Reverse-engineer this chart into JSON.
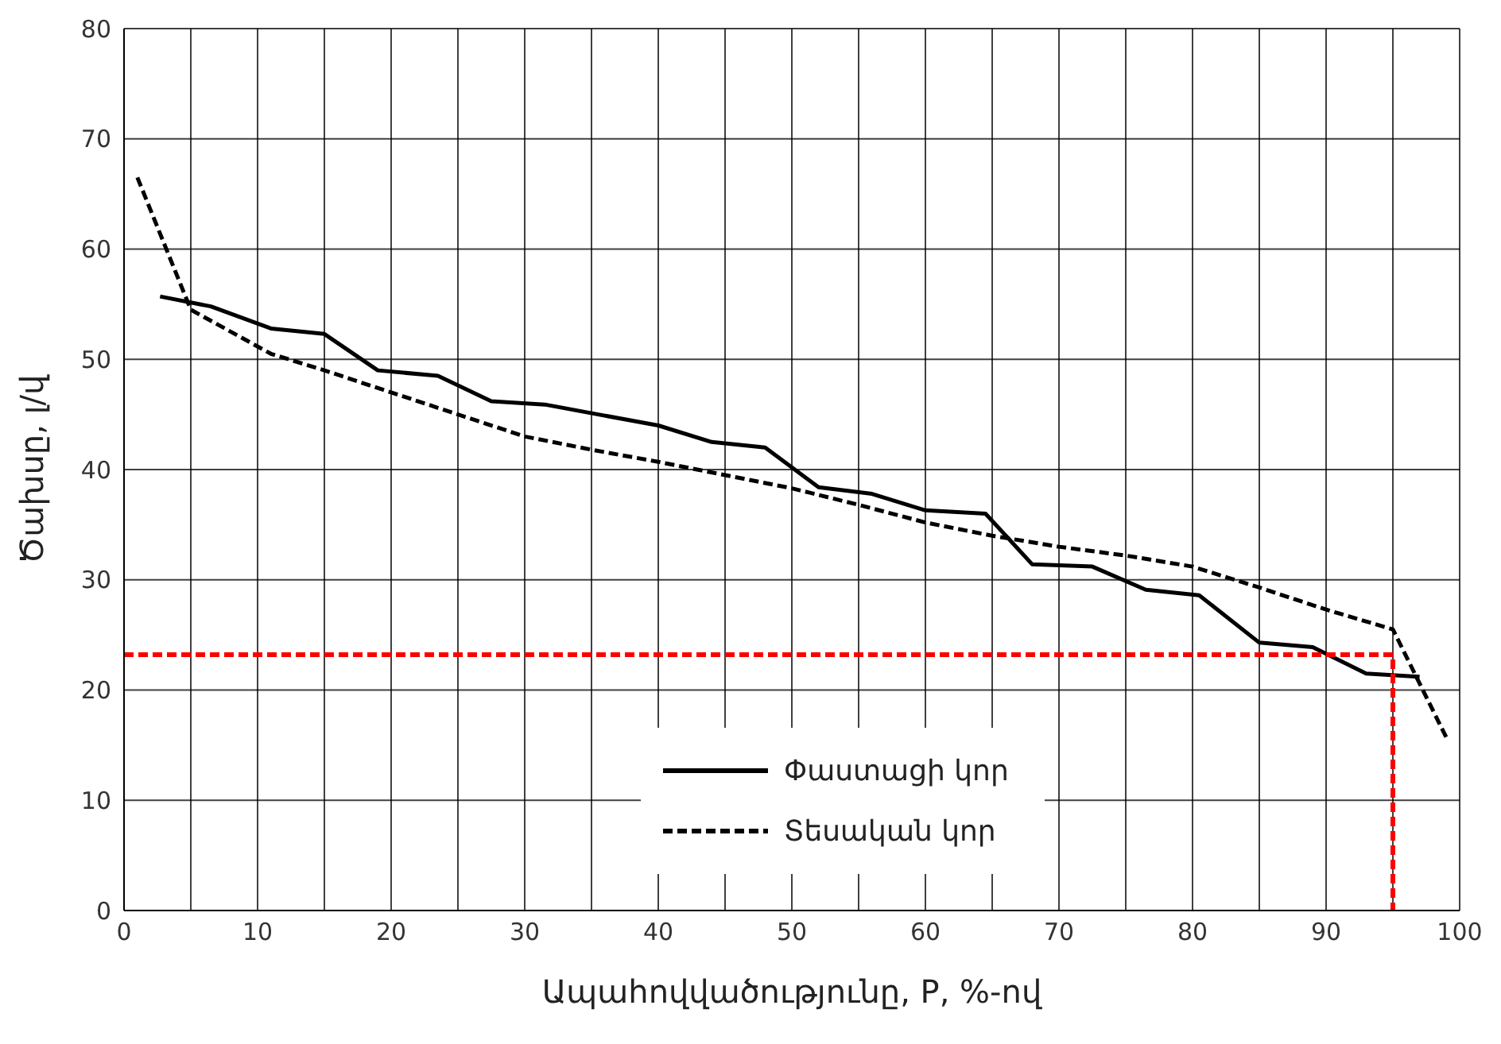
{
  "chart_data": {
    "type": "line",
    "xlabel": "Ապահովվածությունը, P, %-ով",
    "ylabel": "Ծախսը, լ/վ",
    "xlim": [
      0,
      100
    ],
    "xticks": [
      0,
      {
        "value": 5,
        "label": null
      },
      10,
      {
        "value": 15,
        "label": null
      },
      20,
      {
        "value": 25,
        "label": null
      },
      30,
      {
        "value": 35,
        "label": null
      },
      40,
      {
        "value": 45,
        "label": null
      },
      50,
      {
        "value": 55,
        "label": null
      },
      60,
      {
        "value": 65,
        "label": null
      },
      70,
      {
        "value": 75,
        "label": null
      },
      80,
      {
        "value": 85,
        "label": null
      },
      90,
      {
        "value": 95,
        "label": null
      },
      100
    ],
    "ylim": [
      0,
      80
    ],
    "yticks": [
      0,
      10,
      20,
      30,
      40,
      50,
      60,
      70,
      80
    ],
    "grid": true,
    "legend": "bottom",
    "marker": "none",
    "series": [
      {
        "name": "Փաստացի կոր",
        "color": "#000000",
        "line_style": "solid",
        "x": [
          2.7,
          6.5,
          11,
          15,
          19,
          23.5,
          27.5,
          31.5,
          35.5,
          40,
          44,
          48,
          52,
          56,
          60,
          64.5,
          68,
          72.5,
          76.5,
          80.5,
          85,
          89,
          93,
          97
        ],
        "values": [
          55.7,
          54.8,
          52.8,
          52.3,
          49,
          48.5,
          46.2,
          45.9,
          45,
          44,
          42.5,
          42,
          38.4,
          37.8,
          36.3,
          36,
          31.4,
          31.2,
          29.1,
          28.6,
          24.3,
          23.9,
          21.5,
          21.2
        ]
      },
      {
        "name": "Տեսական կոր",
        "color": "#000000",
        "line_style": "dashed",
        "x": [
          1,
          5,
          11,
          15,
          20,
          25,
          30,
          35,
          40,
          45,
          50,
          55,
          60,
          65,
          70,
          75,
          80,
          85,
          90,
          95,
          99
        ],
        "values": [
          66.5,
          54.5,
          50.5,
          49,
          47,
          45,
          43,
          41.8,
          40.7,
          39.5,
          38.3,
          36.8,
          35.2,
          34,
          33,
          32.2,
          31.2,
          29.3,
          27.3,
          25.5,
          15.7
        ]
      },
      {
        "color": "#ff0000",
        "line_style": "dashed",
        "x": [
          0,
          95,
          95
        ],
        "values": [
          23.2,
          23.2,
          0
        ]
      }
    ]
  }
}
